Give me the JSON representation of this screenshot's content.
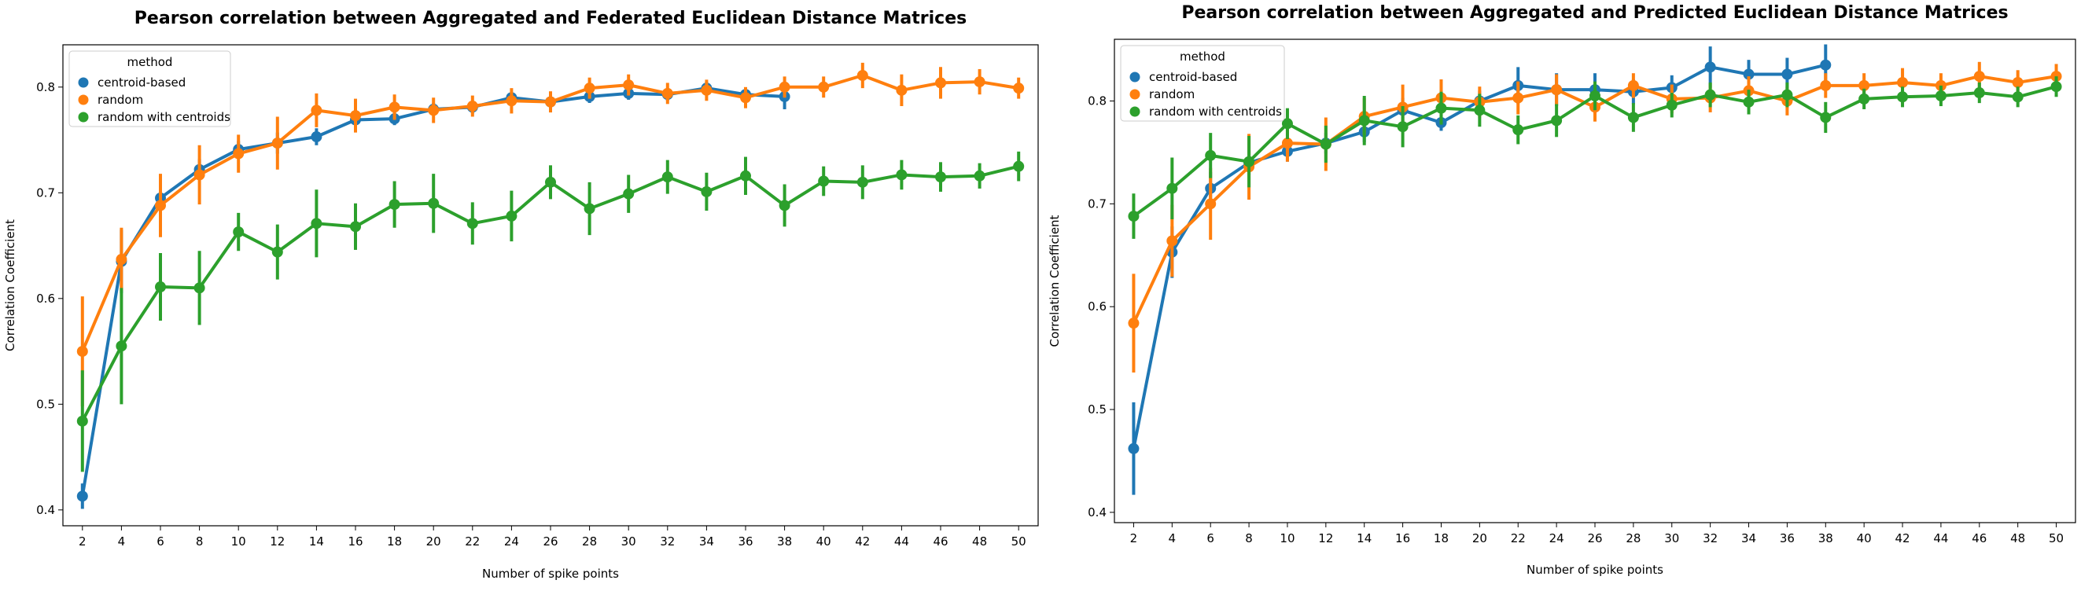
{
  "chart_data": [
    {
      "type": "line",
      "title": "Pearson correlation between Aggregated and Federated Euclidean Distance Matrices",
      "xlabel": "Number of spike points",
      "ylabel": "Correlation Coefficient",
      "x": [
        2,
        4,
        6,
        8,
        10,
        12,
        14,
        16,
        18,
        20,
        22,
        24,
        26,
        28,
        30,
        32,
        34,
        36,
        38,
        40,
        42,
        44,
        46,
        48,
        50
      ],
      "ylim": [
        0.385,
        0.84
      ],
      "yticks": [
        "0.4",
        "0.5",
        "0.6",
        "0.7",
        "0.8"
      ],
      "grid": false,
      "legend": {
        "title": "method",
        "placement": "upper-left"
      },
      "series": [
        {
          "name": "centroid-based",
          "color": "#1f77b4",
          "values": [
            0.413,
            0.635,
            0.695,
            0.722,
            0.741,
            0.747,
            0.753,
            0.769,
            0.77,
            0.779,
            0.781,
            0.79,
            0.786,
            0.791,
            0.794,
            0.793,
            0.799,
            0.793,
            0.791,
            null,
            null,
            null,
            null,
            null,
            null
          ],
          "err": [
            0.012,
            0.03,
            0.012,
            0.01,
            0.008,
            0.01,
            0.008,
            0.007,
            0.006,
            0.006,
            0.006,
            0.005,
            0.005,
            0.006,
            0.006,
            0.006,
            0.006,
            0.006,
            0.012,
            null,
            null,
            null,
            null,
            null,
            null
          ]
        },
        {
          "name": "random",
          "color": "#ff7f0e",
          "values": [
            0.55,
            0.637,
            0.688,
            0.717,
            0.737,
            0.747,
            0.778,
            0.773,
            0.781,
            0.778,
            0.782,
            0.787,
            0.786,
            0.799,
            0.802,
            0.794,
            0.797,
            0.79,
            0.8,
            0.8,
            0.811,
            0.797,
            0.804,
            0.805,
            0.799
          ],
          "err": [
            0.052,
            0.03,
            0.03,
            0.028,
            0.018,
            0.025,
            0.016,
            0.016,
            0.012,
            0.012,
            0.01,
            0.012,
            0.01,
            0.01,
            0.01,
            0.01,
            0.01,
            0.01,
            0.01,
            0.01,
            0.012,
            0.015,
            0.015,
            0.012,
            0.01
          ]
        },
        {
          "name": "random with centroids",
          "color": "#2ca02c",
          "values": [
            0.484,
            0.555,
            0.611,
            0.61,
            0.663,
            0.644,
            0.671,
            0.668,
            0.689,
            0.69,
            0.671,
            0.678,
            0.71,
            0.685,
            0.699,
            0.715,
            0.701,
            0.716,
            0.688,
            0.711,
            0.71,
            0.717,
            0.715,
            0.716,
            0.725
          ],
          "err": [
            0.048,
            0.055,
            0.032,
            0.035,
            0.018,
            0.026,
            0.032,
            0.022,
            0.022,
            0.028,
            0.02,
            0.024,
            0.016,
            0.025,
            0.018,
            0.016,
            0.018,
            0.018,
            0.02,
            0.014,
            0.016,
            0.014,
            0.014,
            0.012,
            0.014
          ]
        }
      ]
    },
    {
      "type": "line",
      "title": "Pearson correlation between Aggregated and Predicted Euclidean Distance Matrices",
      "xlabel": "Number of spike points",
      "ylabel": "Correlation Coefficient",
      "x": [
        2,
        4,
        6,
        8,
        10,
        12,
        14,
        16,
        18,
        20,
        22,
        24,
        26,
        28,
        30,
        32,
        34,
        36,
        38,
        40,
        42,
        44,
        46,
        48,
        50
      ],
      "ylim": [
        0.39,
        0.86
      ],
      "yticks": [
        "0.4",
        "0.5",
        "0.6",
        "0.7",
        "0.8"
      ],
      "grid": false,
      "legend": {
        "title": "method",
        "placement": "upper-left"
      },
      "series": [
        {
          "name": "centroid-based",
          "color": "#1f77b4",
          "values": [
            0.462,
            0.653,
            0.715,
            0.74,
            0.751,
            0.759,
            0.77,
            0.791,
            0.779,
            0.8,
            0.815,
            0.811,
            0.811,
            0.809,
            0.813,
            0.833,
            0.826,
            0.826,
            0.835,
            null,
            null,
            null,
            null,
            null,
            null
          ],
          "err": [
            0.045,
            0.025,
            0.016,
            0.012,
            0.01,
            0.01,
            0.01,
            0.012,
            0.008,
            0.01,
            0.018,
            0.016,
            0.016,
            0.012,
            0.012,
            0.02,
            0.014,
            0.016,
            0.02,
            null,
            null,
            null,
            null,
            null,
            null
          ]
        },
        {
          "name": "random",
          "color": "#ff7f0e",
          "values": [
            0.584,
            0.664,
            0.7,
            0.736,
            0.759,
            0.758,
            0.785,
            0.794,
            0.803,
            0.799,
            0.803,
            0.811,
            0.794,
            0.815,
            0.802,
            0.803,
            0.81,
            0.8,
            0.815,
            0.815,
            0.818,
            0.815,
            0.824,
            0.818,
            0.824
          ],
          "err": [
            0.048,
            0.035,
            0.035,
            0.032,
            0.018,
            0.026,
            0.018,
            0.022,
            0.018,
            0.015,
            0.016,
            0.015,
            0.014,
            0.012,
            0.014,
            0.014,
            0.014,
            0.014,
            0.012,
            0.012,
            0.014,
            0.012,
            0.014,
            0.012,
            0.012
          ]
        },
        {
          "name": "random with centroids",
          "color": "#2ca02c",
          "values": [
            0.688,
            0.715,
            0.747,
            0.741,
            0.778,
            0.758,
            0.781,
            0.775,
            0.793,
            0.791,
            0.772,
            0.781,
            0.805,
            0.784,
            0.796,
            0.806,
            0.799,
            0.806,
            0.784,
            0.802,
            0.804,
            0.805,
            0.808,
            0.804,
            0.814
          ],
          "err": [
            0.022,
            0.03,
            0.022,
            0.025,
            0.015,
            0.018,
            0.024,
            0.02,
            0.016,
            0.016,
            0.014,
            0.016,
            0.014,
            0.014,
            0.012,
            0.012,
            0.012,
            0.012,
            0.015,
            0.01,
            0.01,
            0.01,
            0.01,
            0.01,
            0.01
          ]
        }
      ]
    }
  ]
}
